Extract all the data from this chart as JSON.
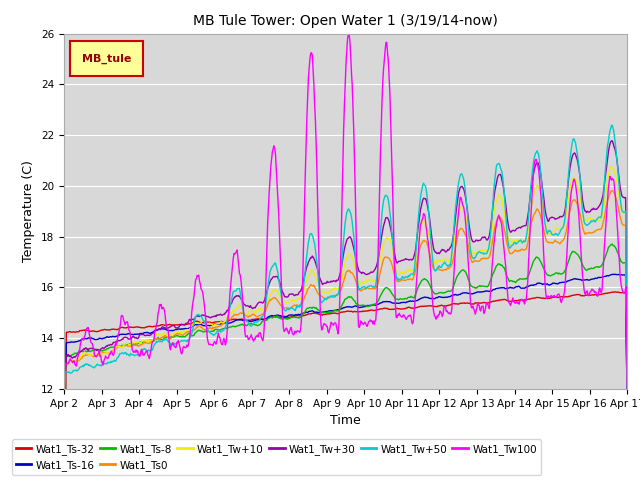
{
  "title": "MB Tule Tower: Open Water 1 (3/19/14-now)",
  "xlabel": "Time",
  "ylabel": "Temperature (C)",
  "ylim": [
    12,
    26
  ],
  "yticks": [
    12,
    14,
    16,
    18,
    20,
    22,
    24,
    26
  ],
  "legend_label": "MB_tule",
  "background_color": "#ffffff",
  "plot_bg_color": "#d8d8d8",
  "grid_color": "#ffffff",
  "series": {
    "Wat1_Ts-32": {
      "color": "#dd0000"
    },
    "Wat1_Ts-16": {
      "color": "#0000cc"
    },
    "Wat1_Ts-8": {
      "color": "#00bb00"
    },
    "Wat1_Ts0": {
      "color": "#ff8800"
    },
    "Wat1_Tw+10": {
      "color": "#eeee00"
    },
    "Wat1_Tw+30": {
      "color": "#9900aa"
    },
    "Wat1_Tw+50": {
      "color": "#00cccc"
    },
    "Wat1_Tw100": {
      "color": "#ff00ff"
    }
  },
  "xtick_labels": [
    "Apr 2",
    "Apr 3",
    "Apr 4",
    "Apr 5",
    "Apr 6",
    "Apr 7",
    "Apr 8",
    "Apr 9",
    "Apr 10",
    "Apr 11",
    "Apr 12",
    "Apr 13",
    "Apr 14",
    "Apr 15",
    "Apr 16",
    "Apr 17"
  ]
}
